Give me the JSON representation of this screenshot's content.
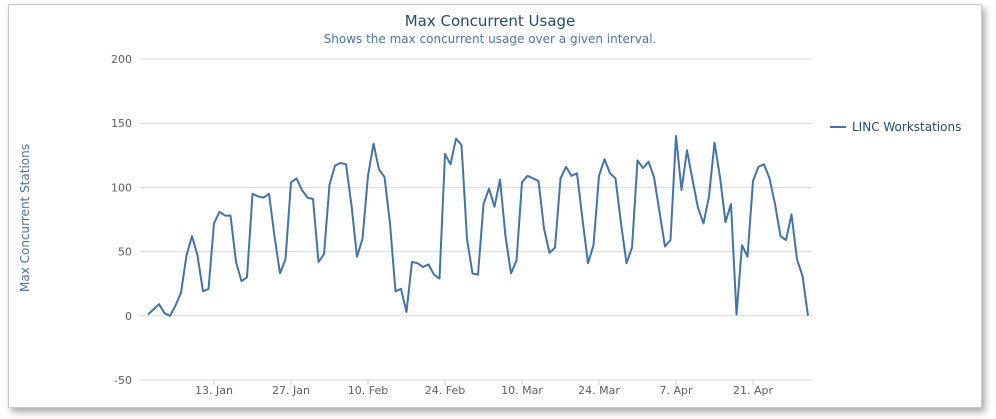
{
  "chart_data": {
    "type": "line",
    "title": "Max Concurrent Usage",
    "subtitle": "Shows the max concurrent usage over a given interval.",
    "ylabel": "Max Concurrent Stations",
    "xlabel": "",
    "ylim": [
      -50,
      200
    ],
    "yticks": [
      -50,
      0,
      50,
      100,
      150,
      200
    ],
    "xtick_labels": [
      "13. Jan",
      "27. Jan",
      "10. Feb",
      "24. Feb",
      "10. Mar",
      "24. Mar",
      "7. Apr",
      "21. Apr"
    ],
    "x_start": "2014-01-01",
    "x_step": "1 day",
    "grid": "horizontal",
    "legend_position": "right",
    "series": [
      {
        "name": "LINC Workstations",
        "color": "#4572a7",
        "values": [
          1,
          5,
          9,
          2,
          0,
          8,
          18,
          47,
          62,
          47,
          19,
          21,
          72,
          81,
          78,
          78,
          42,
          27,
          30,
          95,
          93,
          92,
          95,
          62,
          33,
          44,
          104,
          107,
          98,
          92,
          91,
          42,
          48,
          102,
          117,
          119,
          118,
          86,
          46,
          60,
          109,
          134,
          114,
          108,
          72,
          19,
          21,
          3,
          42,
          41,
          38,
          40,
          32,
          29,
          126,
          118,
          138,
          133,
          60,
          33,
          32,
          87,
          99,
          85,
          106,
          62,
          33,
          43,
          104,
          109,
          107,
          105,
          68,
          49,
          53,
          107,
          116,
          109,
          111,
          75,
          41,
          55,
          109,
          122,
          111,
          107,
          72,
          41,
          53,
          121,
          115,
          120,
          108,
          81,
          54,
          59,
          140,
          98,
          129,
          106,
          84,
          72,
          93,
          135,
          108,
          73,
          87,
          1,
          55,
          46,
          105,
          116,
          118,
          107,
          87,
          62,
          59,
          79,
          44,
          31,
          0
        ]
      }
    ]
  }
}
